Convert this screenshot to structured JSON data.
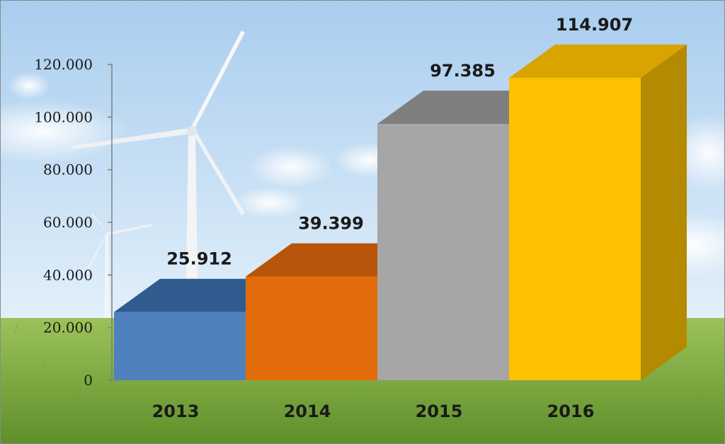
{
  "chart_data": {
    "type": "bar",
    "categories": [
      "2013",
      "2014",
      "2015",
      "2016"
    ],
    "values": [
      25912,
      39399,
      97385,
      114907
    ],
    "value_labels": [
      "25.912",
      "39.399",
      "97.385",
      "114.907"
    ],
    "yticks": [
      "0",
      "20.000",
      "40.000",
      "60.000",
      "80.000",
      "100.000",
      "120.000"
    ],
    "ylim": [
      0,
      120000
    ],
    "grid": false,
    "legend": "none",
    "colors": [
      {
        "front": "#4f81bd",
        "top": "#2f5b8e",
        "side": "#3a6597"
      },
      {
        "front": "#e36c0a",
        "top": "#b8550a",
        "side": "#c45f0c"
      },
      {
        "front": "#a6a6a6",
        "top": "#7f7f7f",
        "side": "#8c8c8c"
      },
      {
        "front": "#ffc000",
        "top": "#d9a300",
        "side": "#b38a00"
      }
    ]
  },
  "background": {
    "sky_top": "#a9cdee",
    "sky_bottom": "#e3f0fa",
    "grass": "#7fae3e",
    "decor": "wind-turbines"
  }
}
